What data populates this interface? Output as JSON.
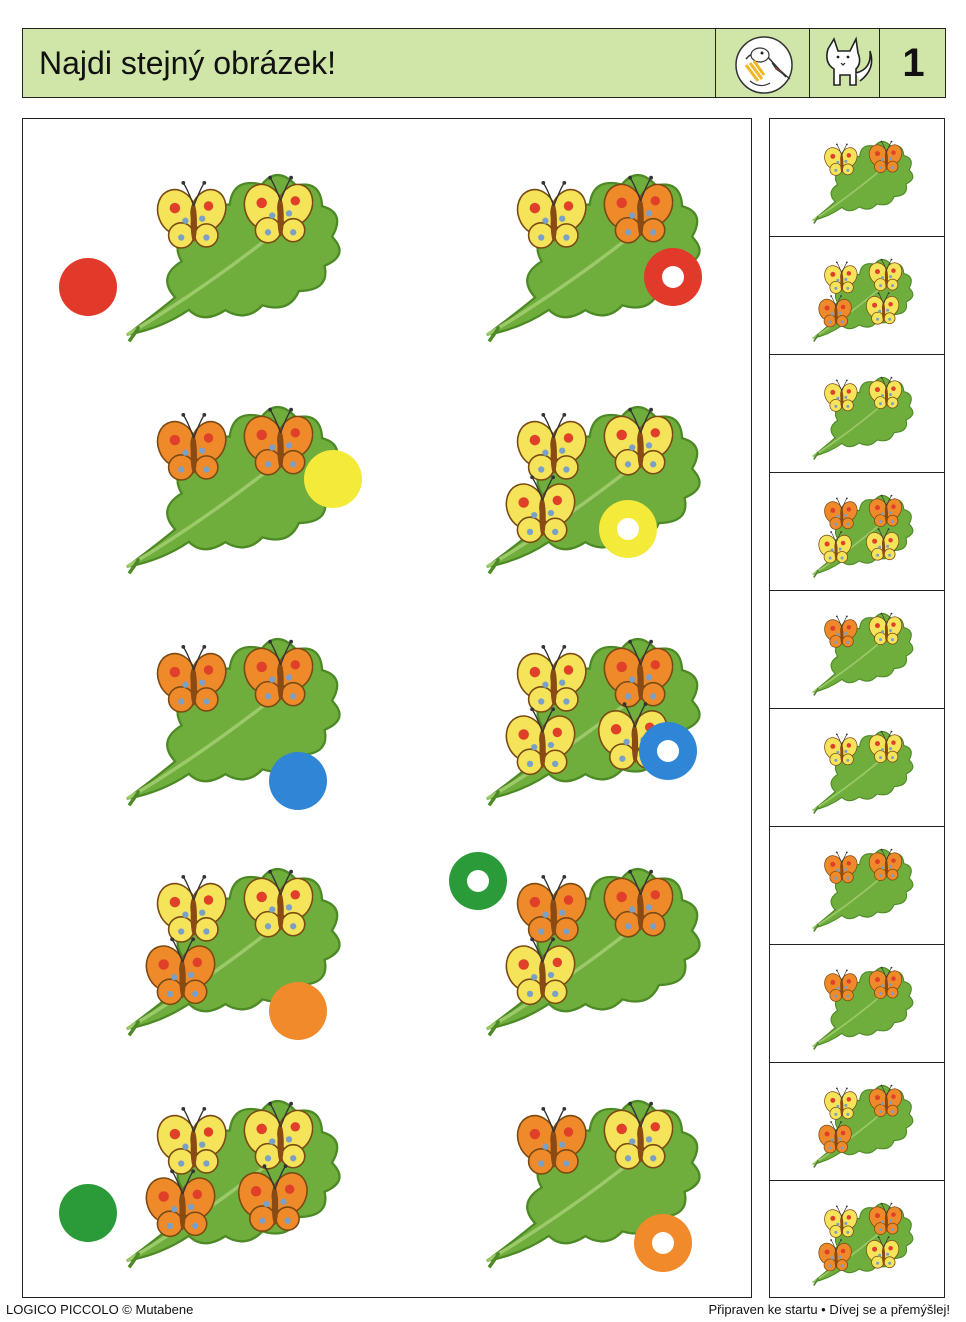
{
  "header": {
    "title": "Najdi stejný obrázek!",
    "page_number": "1",
    "icons": [
      "stork-icon",
      "fox-icon"
    ]
  },
  "colors": {
    "header_bg": "#cfe6a8",
    "leaf": "#6fae3c",
    "leaf_dark": "#4d8a26",
    "butterfly_yellow": "#f5e35a",
    "butterfly_orange": "#ef8a2a",
    "spot_red": "#e0402a",
    "spot_blue": "#7aa0c8"
  },
  "items": [
    {
      "name": "red",
      "color": "#e23a2a",
      "ring": false,
      "butterflies": [
        "yellow",
        "yellow"
      ]
    },
    {
      "name": "yellow",
      "color": "#f4ea3a",
      "ring": false,
      "butterflies": [
        "orange",
        "orange"
      ]
    },
    {
      "name": "blue",
      "color": "#2f86d6",
      "ring": false,
      "butterflies": [
        "orange",
        "orange"
      ]
    },
    {
      "name": "orange",
      "color": "#f08a2a",
      "ring": false,
      "butterflies": [
        "yellow",
        "yellow",
        "orange"
      ]
    },
    {
      "name": "green",
      "color": "#2b9b3a",
      "ring": false,
      "butterflies": [
        "yellow",
        "yellow",
        "orange",
        "orange"
      ]
    },
    {
      "name": "red-ring",
      "color": "#e23a2a",
      "ring": true,
      "butterflies": [
        "yellow",
        "orange"
      ]
    },
    {
      "name": "yellow-ring",
      "color": "#f4ea3a",
      "ring": true,
      "butterflies": [
        "yellow",
        "yellow",
        "yellow"
      ]
    },
    {
      "name": "blue-ring",
      "color": "#2f86d6",
      "ring": true,
      "butterflies": [
        "yellow",
        "orange",
        "yellow",
        "yellow"
      ]
    },
    {
      "name": "green-ring",
      "color": "#2b9b3a",
      "ring": true,
      "butterflies": [
        "orange",
        "orange",
        "yellow"
      ]
    },
    {
      "name": "orange-ring",
      "color": "#f08a2a",
      "ring": true,
      "butterflies": [
        "orange",
        "yellow"
      ]
    }
  ],
  "candidates": [
    {
      "butterflies": [
        "yellow",
        "orange"
      ]
    },
    {
      "butterflies": [
        "yellow",
        "yellow",
        "orange",
        "yellow"
      ]
    },
    {
      "butterflies": [
        "yellow",
        "yellow"
      ]
    },
    {
      "butterflies": [
        "orange",
        "orange",
        "yellow",
        "yellow"
      ]
    },
    {
      "butterflies": [
        "orange",
        "yellow"
      ]
    },
    {
      "butterflies": [
        "yellow",
        "yellow"
      ]
    },
    {
      "butterflies": [
        "orange",
        "orange"
      ]
    },
    {
      "butterflies": [
        "orange",
        "orange"
      ]
    },
    {
      "butterflies": [
        "yellow",
        "orange",
        "orange"
      ]
    },
    {
      "butterflies": [
        "yellow",
        "orange",
        "orange",
        "yellow"
      ]
    }
  ],
  "footer": {
    "left": "LOGICO PICCOLO © Mutabene",
    "right": "Připraven ke startu • Dívej se a přemýšlej!"
  }
}
